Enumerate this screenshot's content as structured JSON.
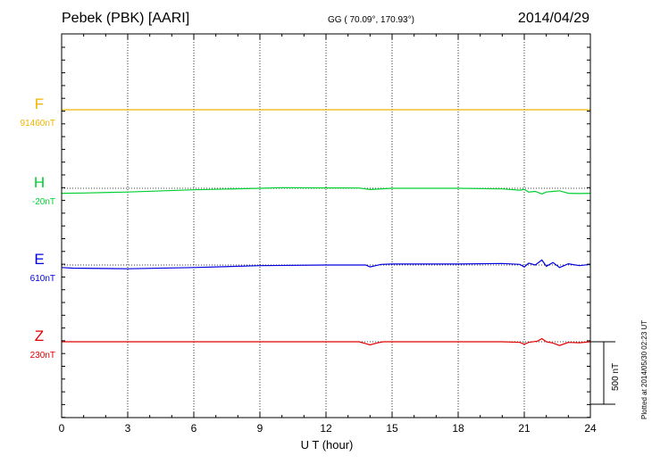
{
  "header": {
    "station": "Pebek (PBK)  [AARI]",
    "coords": "GG ( 70.09°, 170.93°)",
    "date": "2014/04/29"
  },
  "plotted_note": "Plotted at 2014/05/30 02:23 UT",
  "chart_data": {
    "type": "line",
    "xlabel": "U T (hour)",
    "xlim": [
      0,
      24
    ],
    "xticks": [
      0,
      3,
      6,
      9,
      12,
      15,
      18,
      21,
      24
    ],
    "xtick_labels": [
      "0",
      "3",
      "6",
      "9",
      "12",
      "15",
      "18",
      "21",
      "24"
    ],
    "grid": true,
    "scale_bar": {
      "label": "500 nT",
      "value": 500
    },
    "series": [
      {
        "name": "F",
        "baseline_label": "91460nT",
        "color": "#f0b400",
        "x": [
          0,
          24
        ],
        "y": [
          0,
          0
        ]
      },
      {
        "name": "H",
        "baseline_label": "-20nT",
        "color": "#00d030",
        "x": [
          0,
          1,
          3,
          6,
          9,
          10,
          12,
          13.5,
          14,
          15,
          18,
          20,
          20.8,
          21,
          21.2,
          21.5,
          21.8,
          22,
          22.3,
          22.6,
          23,
          23.5,
          24
        ],
        "y": [
          -40,
          -38,
          -30,
          -12,
          0,
          5,
          3,
          2,
          -10,
          0,
          0,
          -5,
          -15,
          -8,
          -30,
          -25,
          -45,
          -30,
          -25,
          -20,
          -40,
          -42,
          -40
        ]
      },
      {
        "name": "E",
        "baseline_label": "610nT",
        "color": "#0000e0",
        "x": [
          0,
          0.5,
          3,
          6,
          9,
          12,
          13.8,
          14,
          14.5,
          15,
          18,
          20,
          20.8,
          21,
          21.2,
          21.5,
          21.8,
          22,
          22.3,
          22.6,
          23,
          23.5,
          24
        ],
        "y": [
          -20,
          -25,
          -30,
          -20,
          -5,
          0,
          0,
          -15,
          5,
          8,
          8,
          12,
          5,
          -15,
          15,
          0,
          40,
          -10,
          20,
          -20,
          10,
          -5,
          5
        ]
      },
      {
        "name": "Z",
        "baseline_label": "230nT",
        "color": "#e00000",
        "x": [
          0,
          3,
          6,
          9,
          12,
          13.5,
          13.8,
          14,
          14.3,
          14.6,
          15,
          18,
          20,
          20.8,
          21,
          21.2,
          21.6,
          21.8,
          22,
          22.3,
          22.6,
          23,
          23.5,
          24
        ],
        "y": [
          0,
          0,
          0,
          0,
          0,
          0,
          -15,
          -25,
          -10,
          0,
          0,
          0,
          0,
          -5,
          -20,
          -5,
          5,
          25,
          0,
          -10,
          -30,
          -5,
          -8,
          0
        ]
      }
    ]
  }
}
